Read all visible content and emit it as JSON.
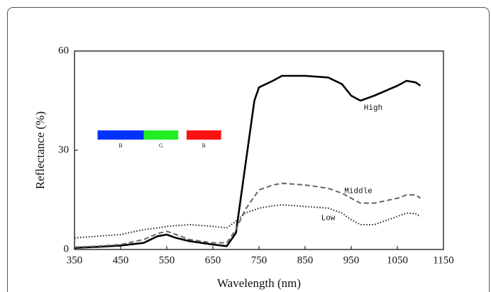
{
  "chart_data": {
    "type": "line",
    "xlabel": "Wavelength (nm)",
    "ylabel": "Reflectance (%)",
    "x": [
      350,
      400,
      450,
      500,
      530,
      550,
      570,
      600,
      650,
      680,
      700,
      720,
      740,
      750,
      780,
      800,
      850,
      900,
      930,
      950,
      970,
      1000,
      1050,
      1070,
      1090,
      1100
    ],
    "series": [
      {
        "name": "High",
        "color": "#000000",
        "style": "solid",
        "values": [
          0.5,
          0.8,
          1.2,
          2,
          4,
          4.5,
          3.5,
          2.5,
          1.5,
          1,
          5,
          25,
          45,
          49,
          51,
          52.5,
          52.5,
          52,
          50,
          46.5,
          45,
          46.5,
          49.5,
          51,
          50.5,
          49.5
        ]
      },
      {
        "name": "Middle",
        "color": "#666666",
        "style": "dashed",
        "values": [
          0.7,
          1,
          1.5,
          3,
          4.8,
          5.5,
          4.5,
          3,
          2,
          2,
          6,
          12,
          16,
          18,
          19.5,
          20,
          19.5,
          18.5,
          17,
          15.5,
          14,
          14,
          15.5,
          16.5,
          16.5,
          15.5
        ]
      },
      {
        "name": "Low",
        "color": "#222222",
        "style": "dotted",
        "values": [
          3.5,
          4,
          4.5,
          6,
          6.5,
          7,
          7.2,
          7.5,
          7,
          6.5,
          8.5,
          11,
          12,
          12.5,
          13.2,
          13.5,
          13,
          12.5,
          11,
          9,
          7.5,
          7.5,
          10,
          11,
          10.8,
          10
        ]
      }
    ],
    "bands": [
      {
        "label": "B",
        "start": 400,
        "end": 500,
        "color": "#0033ff"
      },
      {
        "label": "G",
        "start": 500,
        "end": 575,
        "color": "#22ee22"
      },
      {
        "label": "R",
        "start": 593,
        "end": 668,
        "color": "#ff1111"
      }
    ],
    "xlim": [
      350,
      1150
    ],
    "xticks": [
      350,
      450,
      550,
      650,
      750,
      850,
      950,
      1050,
      1150
    ],
    "ylim": [
      0,
      60
    ],
    "yticks": [
      0,
      30,
      60
    ]
  }
}
